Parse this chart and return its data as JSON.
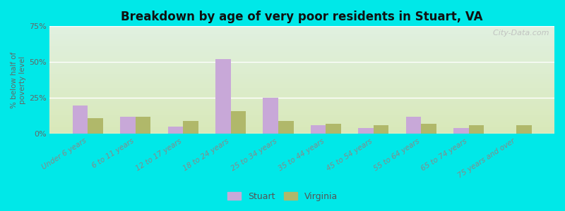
{
  "title": "Breakdown by age of very poor residents in Stuart, VA",
  "ylabel": "% below half of\npoverty level",
  "categories": [
    "Under 6 years",
    "6 to 11 years",
    "12 to 17 years",
    "18 to 24 years",
    "25 to 34 years",
    "35 to 44 years",
    "45 to 54 years",
    "55 to 64 years",
    "65 to 74 years",
    "75 years and over"
  ],
  "stuart_values": [
    20,
    12,
    5,
    52,
    25,
    6,
    4,
    12,
    4,
    0
  ],
  "virginia_values": [
    11,
    12,
    9,
    16,
    9,
    7,
    6,
    7,
    6,
    6
  ],
  "stuart_color": "#c8a8d8",
  "virginia_color": "#b0b86a",
  "background_outer": "#00e8e8",
  "background_plot_top": "#e0f0e0",
  "background_plot_bottom": "#d8e8b8",
  "ylim": [
    0,
    75
  ],
  "yticks": [
    0,
    25,
    50,
    75
  ],
  "ytick_labels": [
    "0%",
    "25%",
    "50%",
    "75%"
  ],
  "bar_width": 0.32,
  "legend_labels": [
    "Stuart",
    "Virginia"
  ],
  "watermark": "  City-Data.com"
}
